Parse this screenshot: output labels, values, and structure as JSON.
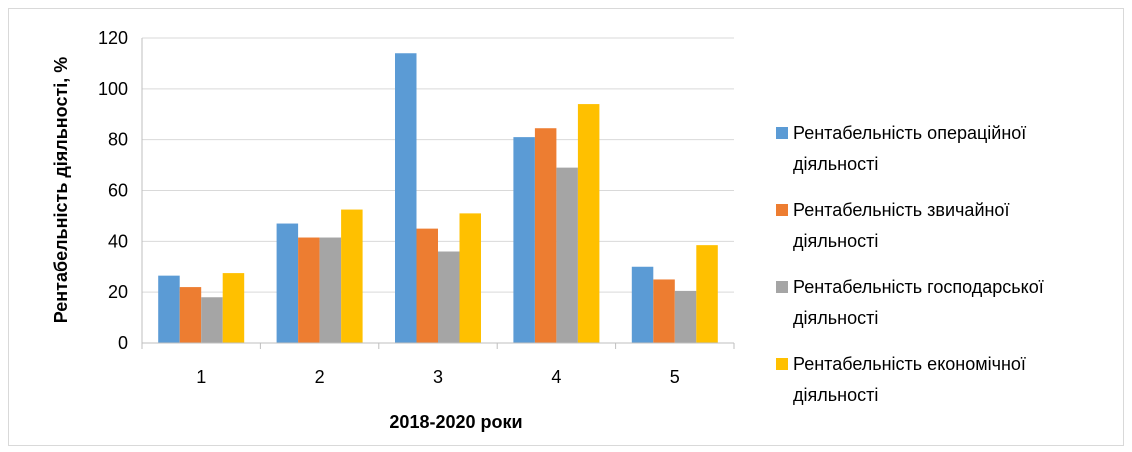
{
  "chart_data": {
    "type": "bar",
    "categories": [
      "1",
      "2",
      "3",
      "4",
      "5"
    ],
    "series": [
      {
        "name": "Рентабельність операційної діяльності",
        "name_lines": [
          "Рентабельність операційної",
          "діяльності"
        ],
        "color": "#5b9bd5",
        "values": [
          26.5,
          47,
          114,
          81,
          30
        ]
      },
      {
        "name": "Рентабельність звичайної діяльності",
        "name_lines": [
          "Рентабельність звичайної",
          "діяльності"
        ],
        "color": "#ed7d31",
        "values": [
          22,
          41.5,
          45,
          84.5,
          25
        ]
      },
      {
        "name": "Рентабельність господарської діяльності",
        "name_lines": [
          "Рентабельність господарської",
          "діяльності"
        ],
        "color": "#a5a5a5",
        "values": [
          18,
          41.5,
          36,
          69,
          20.5
        ]
      },
      {
        "name": "Рентабельність економічної діяльності",
        "name_lines": [
          "Рентабельність економічної",
          "діяльності"
        ],
        "color": "#ffc000",
        "values": [
          27.5,
          52.5,
          51,
          94,
          38.5
        ]
      }
    ],
    "title": "",
    "xlabel": "2018-2020 роки",
    "ylabel": "Рентабельність діяльності, %",
    "ylim": [
      0,
      120
    ],
    "yticks": [
      "0",
      "20",
      "40",
      "60",
      "80",
      "100",
      "120"
    ],
    "grid": true,
    "legend_position": "right"
  }
}
